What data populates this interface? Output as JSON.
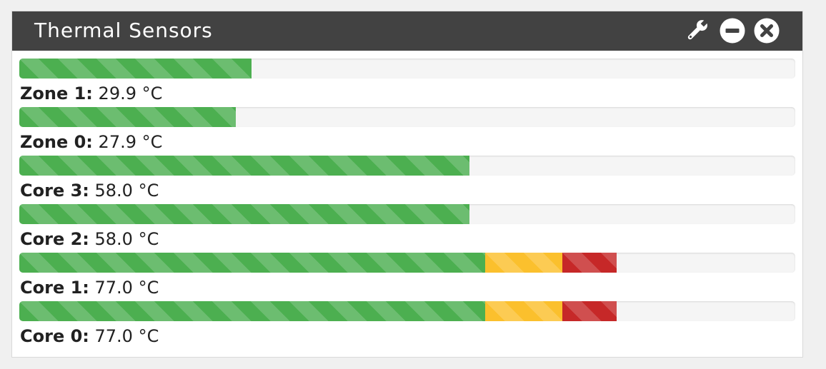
{
  "widget": {
    "title": "Thermal Sensors",
    "icons": [
      "wrench-icon",
      "minimize-icon",
      "close-icon"
    ],
    "colors": {
      "header": "#424242",
      "success": "#4caf50",
      "warning": "#fbc02d",
      "danger": "#c62828",
      "track": "#f5f5f5"
    }
  },
  "sensors": [
    {
      "name": "Zone 1:",
      "value": "29.9 °C",
      "temp": 29.9,
      "segments": [
        {
          "type": "success",
          "percent": 29.9
        }
      ]
    },
    {
      "name": "Zone 0:",
      "value": "27.9 °C",
      "temp": 27.9,
      "segments": [
        {
          "type": "success",
          "percent": 27.9
        }
      ]
    },
    {
      "name": "Core 3:",
      "value": "58.0 °C",
      "temp": 58.0,
      "segments": [
        {
          "type": "success",
          "percent": 58.0
        }
      ]
    },
    {
      "name": "Core 2:",
      "value": "58.0 °C",
      "temp": 58.0,
      "segments": [
        {
          "type": "success",
          "percent": 58.0
        }
      ]
    },
    {
      "name": "Core 1:",
      "value": "77.0 °C",
      "temp": 77.0,
      "segments": [
        {
          "type": "success",
          "percent": 60
        },
        {
          "type": "warning",
          "percent": 10
        },
        {
          "type": "danger",
          "percent": 7
        }
      ]
    },
    {
      "name": "Core 0:",
      "value": "77.0 °C",
      "temp": 77.0,
      "segments": [
        {
          "type": "success",
          "percent": 60
        },
        {
          "type": "warning",
          "percent": 10
        },
        {
          "type": "danger",
          "percent": 7
        }
      ]
    }
  ]
}
